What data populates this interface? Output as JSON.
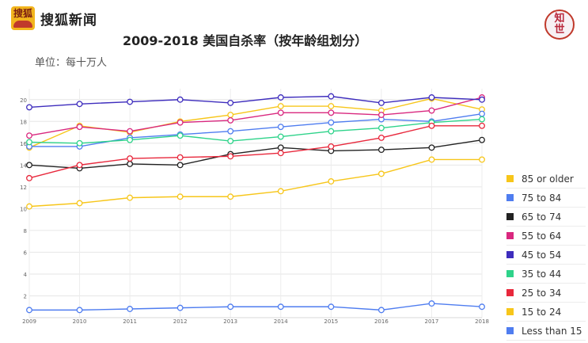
{
  "header": {
    "logo_text": "搜狐",
    "brand_name": "搜狐新闻",
    "badge_text": [
      "知",
      "世"
    ]
  },
  "chart_data": {
    "type": "line",
    "title": "2009-2018 美国自杀率（按年龄组划分）",
    "unit_label": "单位：每十万人",
    "x": [
      2009,
      2010,
      2011,
      2012,
      2013,
      2014,
      2015,
      2016,
      2017,
      2018
    ],
    "ylim": [
      0,
      21
    ],
    "yticks": [
      2,
      4,
      6,
      8,
      10,
      12,
      14,
      16,
      18,
      20
    ],
    "grid": true,
    "legend_position": "right",
    "series": [
      {
        "name": "85 or older",
        "color": "#f7c61a",
        "values": [
          15.6,
          17.6,
          17.0,
          18.0,
          18.6,
          19.4,
          19.4,
          19.0,
          20.1,
          19.1
        ]
      },
      {
        "name": "75 to 84",
        "color": "#4f7df0",
        "values": [
          15.7,
          15.7,
          16.5,
          16.8,
          17.1,
          17.5,
          17.9,
          18.2,
          18.0,
          18.7
        ]
      },
      {
        "name": "65 to 74",
        "color": "#222222",
        "values": [
          14.0,
          13.7,
          14.1,
          14.0,
          15.0,
          15.6,
          15.3,
          15.4,
          15.6,
          16.3
        ]
      },
      {
        "name": "55 to 64",
        "color": "#d9287f",
        "values": [
          16.7,
          17.5,
          17.1,
          17.9,
          18.1,
          18.8,
          18.8,
          18.6,
          19.0,
          20.2
        ]
      },
      {
        "name": "45 to 54",
        "color": "#3e2dbd",
        "values": [
          19.3,
          19.6,
          19.8,
          20.0,
          19.7,
          20.2,
          20.3,
          19.7,
          20.2,
          20.0
        ]
      },
      {
        "name": "35 to 44",
        "color": "#2ed38a",
        "values": [
          16.1,
          16.0,
          16.3,
          16.7,
          16.2,
          16.6,
          17.1,
          17.4,
          17.9,
          18.2
        ]
      },
      {
        "name": "25 to 34",
        "color": "#e8283c",
        "values": [
          12.8,
          14.0,
          14.6,
          14.7,
          14.8,
          15.1,
          15.7,
          16.5,
          17.6,
          17.6
        ]
      },
      {
        "name": "15 to 24",
        "color": "#f7c61a",
        "values": [
          10.2,
          10.5,
          11.0,
          11.1,
          11.1,
          11.6,
          12.5,
          13.2,
          14.5,
          14.5
        ]
      },
      {
        "name": "Less than 15",
        "color": "#4f7df0",
        "values": [
          0.7,
          0.7,
          0.8,
          0.9,
          1.0,
          1.0,
          1.0,
          0.7,
          1.3,
          1.0
        ]
      }
    ]
  }
}
